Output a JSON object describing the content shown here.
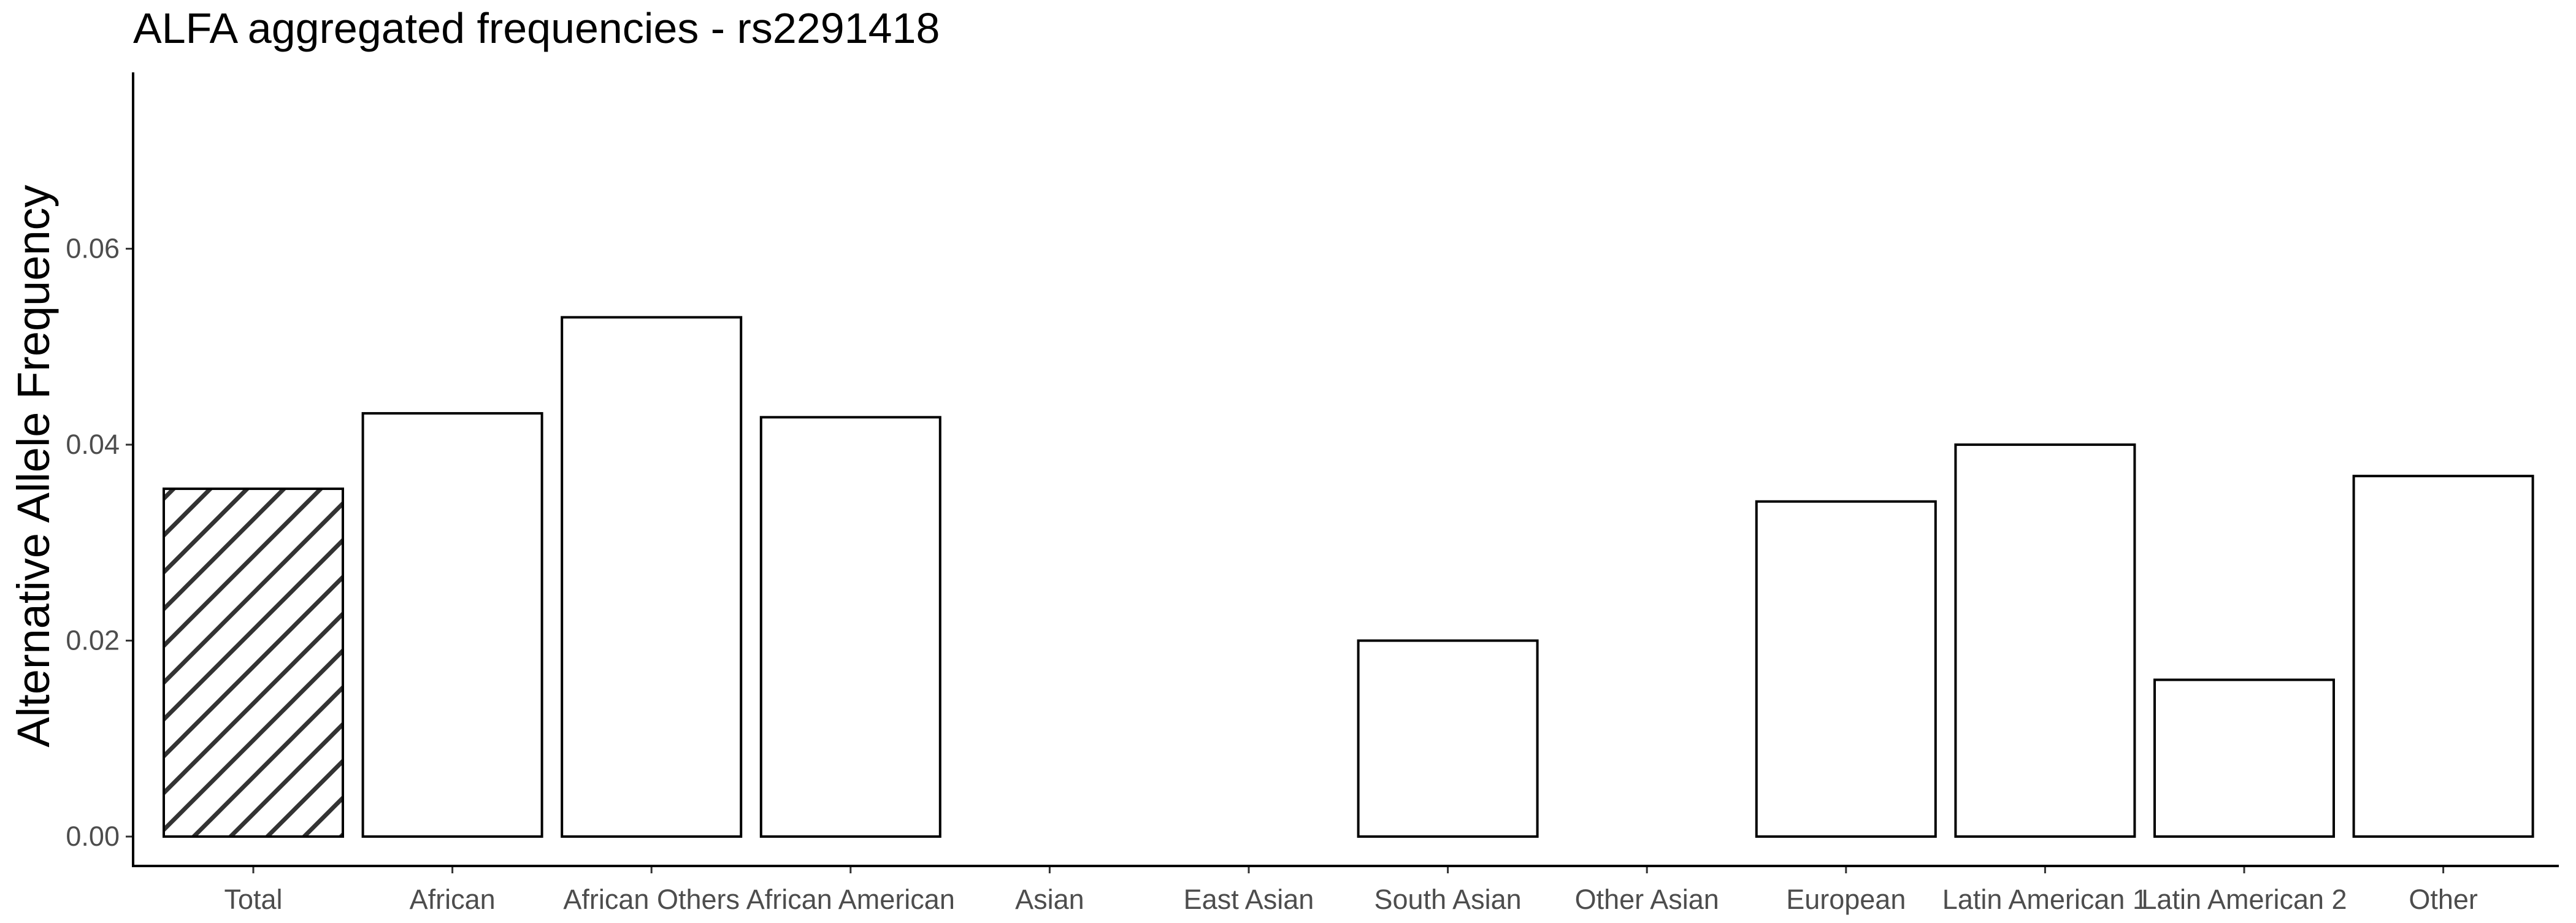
{
  "chart_data": {
    "type": "bar",
    "title": "ALFA aggregated frequencies - rs2291418",
    "xlabel": "",
    "ylabel": "Alternative Allele Frequency",
    "categories": [
      "Total",
      "African",
      "African Others",
      "African American",
      "Asian",
      "East Asian",
      "South Asian",
      "Other Asian",
      "European",
      "Latin American 1",
      "Latin American 2",
      "Other"
    ],
    "values": [
      0.0355,
      0.0432,
      0.053,
      0.0428,
      0.0,
      0.0,
      0.02,
      0.0,
      0.0342,
      0.04,
      0.016,
      0.0368
    ],
    "hatched": [
      true,
      false,
      false,
      false,
      false,
      false,
      false,
      false,
      false,
      false,
      false,
      false
    ],
    "ylim": [
      -0.003,
      0.078
    ],
    "yticks": [
      0.0,
      0.02,
      0.04,
      0.06
    ],
    "ytick_labels": [
      "0.00",
      "0.02",
      "0.04",
      "0.06"
    ],
    "grid": false,
    "legend": "none",
    "colors": {
      "bar_fill": "#ffffff",
      "bar_stroke": "#000000",
      "hatch": "#333333",
      "axis": "#000000",
      "tick_label": "#4d4d4d"
    }
  }
}
